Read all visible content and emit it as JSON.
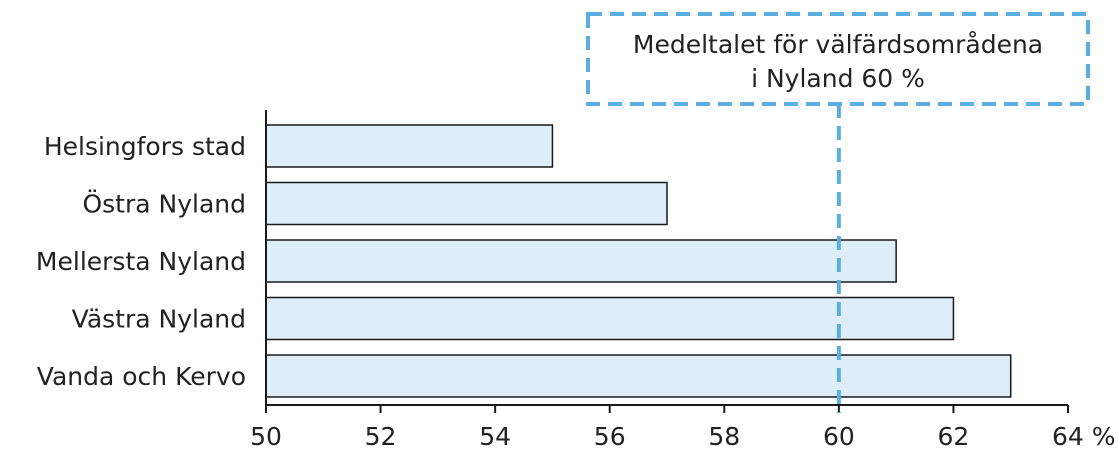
{
  "chart_data": {
    "type": "bar",
    "orientation": "horizontal",
    "categories": [
      "Helsingfors stad",
      "Östra Nyland",
      "Mellersta Nyland",
      "Västra Nyland",
      "Vanda och Kervo"
    ],
    "values": [
      55,
      57,
      61,
      62,
      63
    ],
    "xlim": [
      50,
      64
    ],
    "xticks": [
      "50",
      "52",
      "54",
      "56",
      "58",
      "60",
      "62",
      "64 %"
    ],
    "reference_line": {
      "value": 60,
      "label_line1": "Medeltalet för välfärdsområdena",
      "label_line2": "i Nyland 60 %"
    },
    "bar_fill": "#ddeef9",
    "bar_stroke": "#1a1a1a",
    "reference_color": "#5aaee0"
  }
}
